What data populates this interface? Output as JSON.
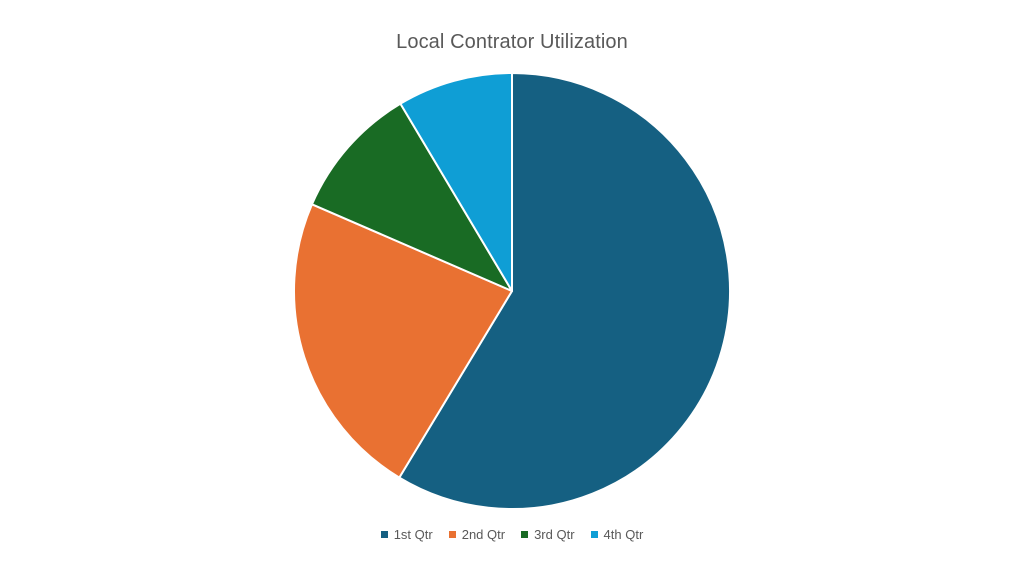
{
  "chart_data": {
    "type": "pie",
    "title": "Local Contrator Utilization",
    "categories": [
      "1st Qtr",
      "2nd Qtr",
      "3rd Qtr",
      "4th Qtr"
    ],
    "values": [
      59,
      23,
      10,
      8.6
    ],
    "colors": [
      "#156082",
      "#E97132",
      "#196B24",
      "#0F9ED5"
    ],
    "legend_position": "bottom"
  }
}
